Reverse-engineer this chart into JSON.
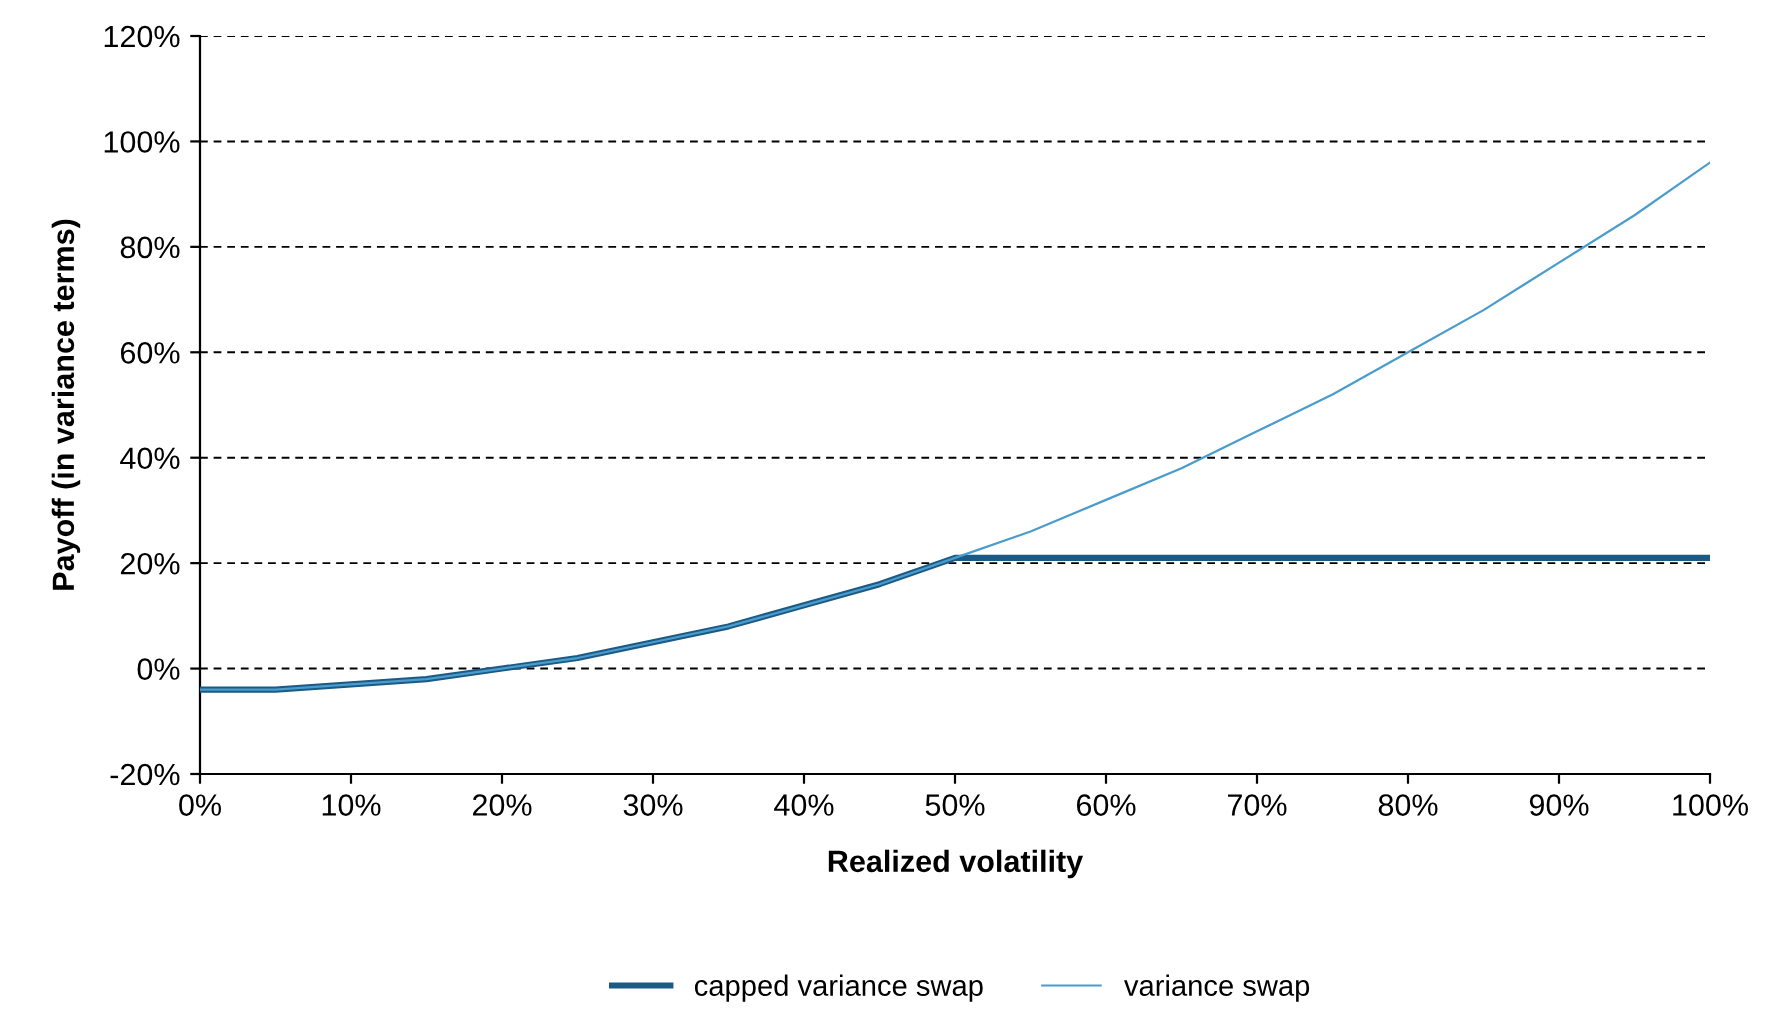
{
  "chart_data": {
    "type": "line",
    "xlabel": "Realized volatility",
    "ylabel": "Payoff (in variance terms)",
    "x": [
      0,
      5,
      10,
      15,
      20,
      25,
      30,
      35,
      40,
      45,
      50,
      55,
      60,
      65,
      70,
      75,
      80,
      85,
      90,
      95,
      100
    ],
    "series": [
      {
        "name": "capped variance swap",
        "color": "#1b5a85",
        "values": [
          -4,
          -4,
          -3,
          -2,
          0,
          2,
          5,
          8,
          12,
          16,
          21,
          21,
          21,
          21,
          21,
          21,
          21,
          21,
          21,
          21,
          21
        ]
      },
      {
        "name": "variance swap",
        "color": "#4a9ccd",
        "values": [
          -4,
          -4,
          -3,
          -2,
          0,
          2,
          5,
          8,
          12,
          16,
          21,
          26,
          32,
          38,
          45,
          52,
          60,
          68,
          77,
          86,
          96
        ]
      }
    ],
    "xlim": [
      0,
      100
    ],
    "xticks": [
      {
        "value": 0,
        "label": "0%"
      },
      {
        "value": 10,
        "label": "10%"
      },
      {
        "value": 20,
        "label": "20%"
      },
      {
        "value": 30,
        "label": "30%"
      },
      {
        "value": 40,
        "label": "40%"
      },
      {
        "value": 50,
        "label": "50%"
      },
      {
        "value": 60,
        "label": "60%"
      },
      {
        "value": 70,
        "label": "70%"
      },
      {
        "value": 80,
        "label": "80%"
      },
      {
        "value": 90,
        "label": "90%"
      },
      {
        "value": 100,
        "label": "100%"
      }
    ],
    "ylim": [
      -20,
      120
    ],
    "yticks": [
      {
        "value": -20,
        "label": "-20%"
      },
      {
        "value": 0,
        "label": "0%"
      },
      {
        "value": 20,
        "label": "20%"
      },
      {
        "value": 40,
        "label": "40%"
      },
      {
        "value": 60,
        "label": "60%"
      },
      {
        "value": 80,
        "label": "80%"
      },
      {
        "value": 100,
        "label": "100%"
      },
      {
        "value": 120,
        "label": "120%"
      }
    ],
    "grid": "y",
    "legend": "bottom",
    "marker": "none",
    "line_style": "solid"
  }
}
